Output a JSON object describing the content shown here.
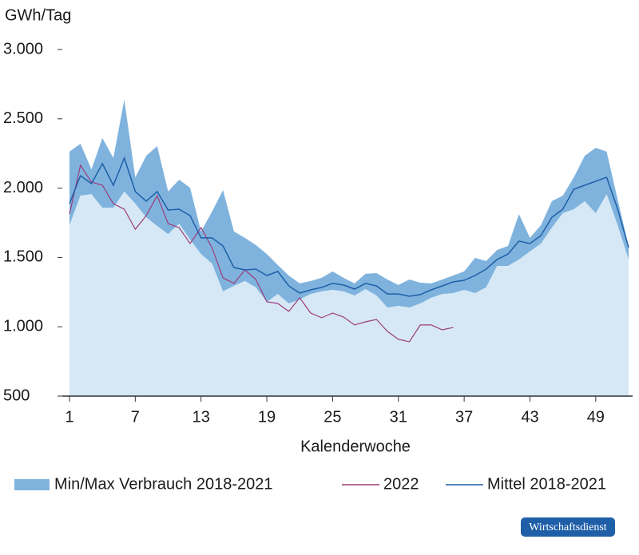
{
  "chart_data": {
    "type": "line",
    "y_axis_label": "GWh/Tag",
    "x_axis_label": "Kalenderwoche",
    "x": [
      1,
      2,
      3,
      4,
      5,
      6,
      7,
      8,
      9,
      10,
      11,
      12,
      13,
      14,
      15,
      16,
      17,
      18,
      19,
      20,
      21,
      22,
      23,
      24,
      25,
      26,
      27,
      28,
      29,
      30,
      31,
      32,
      33,
      34,
      35,
      36,
      37,
      38,
      39,
      40,
      41,
      42,
      43,
      44,
      45,
      46,
      47,
      48,
      49,
      50,
      51,
      52
    ],
    "xlim": [
      1,
      52
    ],
    "xticks": [
      1,
      7,
      13,
      19,
      25,
      31,
      37,
      43,
      49
    ],
    "ylim": [
      500,
      3000
    ],
    "yticks": [
      500,
      {
        "value": 1000,
        "label": "1.000"
      },
      {
        "value": 1500,
        "label": "1.500"
      },
      {
        "value": 2000,
        "label": "2.000"
      },
      {
        "value": 2500,
        "label": "2.500"
      },
      {
        "value": 3000,
        "label": "3.000"
      }
    ],
    "band_fill_below": "#d6e8f5",
    "series": [
      {
        "name": "Min/Max Verbrauch 2018-2021",
        "color": "#7fb3de",
        "low": [
          1733,
          1946,
          1957,
          1859,
          1859,
          1975,
          1888,
          1790,
          1727,
          1669,
          1744,
          1629,
          1525,
          1456,
          1255,
          1295,
          1330,
          1284,
          1180,
          1237,
          1168,
          1197,
          1237,
          1255,
          1266,
          1255,
          1226,
          1272,
          1226,
          1139,
          1151,
          1139,
          1168,
          1209,
          1237,
          1243,
          1266,
          1243,
          1284,
          1439,
          1439,
          1485,
          1543,
          1600,
          1715,
          1819,
          1848,
          1906,
          1819,
          1957,
          1733,
          1485
        ],
        "high": [
          2263,
          2320,
          2136,
          2361,
          2217,
          2637,
          2078,
          2234,
          2303,
          1975,
          2061,
          2003,
          1687,
          1830,
          1986,
          1687,
          1641,
          1589,
          1525,
          1445,
          1370,
          1313,
          1330,
          1353,
          1399,
          1353,
          1313,
          1382,
          1387,
          1341,
          1301,
          1341,
          1318,
          1313,
          1341,
          1370,
          1399,
          1497,
          1474,
          1554,
          1583,
          1813,
          1641,
          1733,
          1906,
          1946,
          2078,
          2234,
          2291,
          2263,
          1917,
          1583
        ]
      },
      {
        "name": "2022",
        "color": "#9b3d7a",
        "values": [
          1813,
          2165,
          2044,
          2021,
          1888,
          1848,
          1704,
          1802,
          1946,
          1744,
          1715,
          1600,
          1715,
          1571,
          1353,
          1313,
          1410,
          1341,
          1180,
          1168,
          1111,
          1209,
          1099,
          1065,
          1099,
          1070,
          1013,
          1036,
          1053,
          967,
          909,
          892,
          1013,
          1013,
          978,
          995,
          null,
          null,
          null,
          null,
          null,
          null,
          null,
          null,
          null,
          null,
          null,
          null,
          null,
          null,
          null,
          null
        ]
      },
      {
        "name": "Mittel 2018-2021",
        "color": "#1f5fa8",
        "values": [
          1888,
          2090,
          2032,
          2176,
          2021,
          2217,
          1975,
          1906,
          1975,
          1842,
          1848,
          1802,
          1641,
          1641,
          1583,
          1427,
          1410,
          1416,
          1370,
          1399,
          1295,
          1243,
          1266,
          1284,
          1313,
          1301,
          1272,
          1313,
          1295,
          1237,
          1237,
          1220,
          1232,
          1266,
          1295,
          1324,
          1335,
          1370,
          1416,
          1485,
          1525,
          1618,
          1600,
          1658,
          1790,
          1848,
          1992,
          2021,
          2050,
          2078,
          1848,
          1571
        ]
      }
    ],
    "source_badge": "Wirtschaftsdienst"
  }
}
